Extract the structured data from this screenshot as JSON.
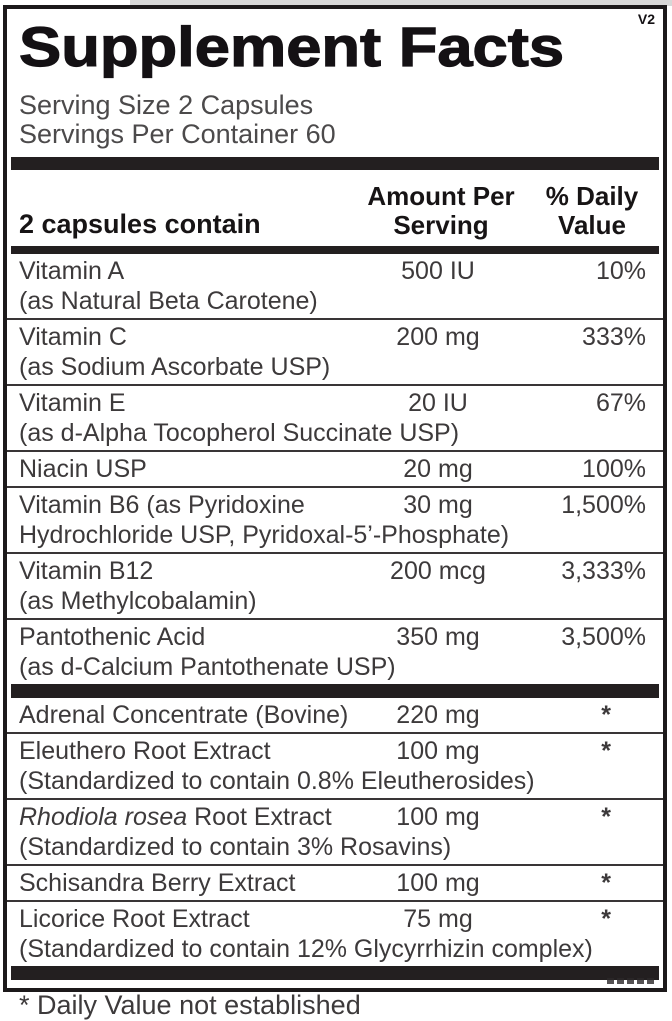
{
  "label": {
    "title": "Supplement Facts",
    "version_mark": "V2",
    "serving_size": "Serving Size 2 Capsules",
    "servings_per_container": "Servings Per Container 60",
    "columns": {
      "ingredient": "2 capsules contain",
      "amount_line1": "Amount Per",
      "amount_line2": "Serving",
      "dv_line1": "% Daily",
      "dv_line2": "Value"
    },
    "footnote": "* Daily Value not established"
  },
  "rows": [
    {
      "name_italic": "",
      "name": "Vitamin A",
      "detail": "(as Natural Beta Carotene)",
      "amount": "500 IU",
      "dv": "10%"
    },
    {
      "name_italic": "",
      "name": "Vitamin C",
      "detail": "(as Sodium Ascorbate USP)",
      "amount": "200 mg",
      "dv": "333%"
    },
    {
      "name_italic": "",
      "name": "Vitamin E",
      "detail": "(as d-Alpha Tocopherol Succinate USP)",
      "amount": "20 IU",
      "dv": "67%"
    },
    {
      "name_italic": "",
      "name": "Niacin USP",
      "detail": "",
      "amount": "20 mg",
      "dv": "100%"
    },
    {
      "name_italic": "",
      "name": "Vitamin B6 (as Pyridoxine",
      "detail": "Hydrochloride USP, Pyridoxal-5’-Phosphate)",
      "amount": "30 mg",
      "dv": "1,500%"
    },
    {
      "name_italic": "",
      "name": "Vitamin B12",
      "detail": "(as Methylcobalamin)",
      "amount": "200 mcg",
      "dv": "3,333%"
    },
    {
      "name_italic": "",
      "name": "Pantothenic Acid",
      "detail": "(as d-Calcium Pantothenate USP)",
      "amount": "350 mg",
      "dv": "3,500%"
    },
    {
      "name_italic": "",
      "name": "Adrenal Concentrate (Bovine)",
      "detail": "",
      "amount": "220 mg",
      "dv": "*"
    },
    {
      "name_italic": "",
      "name": "Eleuthero Root Extract",
      "detail": "(Standardized to contain 0.8% Eleutherosides)",
      "amount": "100 mg",
      "dv": "*"
    },
    {
      "name_italic": "Rhodiola rosea",
      "name": " Root Extract",
      "detail": "(Standardized to contain 3% Rosavins)",
      "amount": "100 mg",
      "dv": "*"
    },
    {
      "name_italic": "",
      "name": "Schisandra Berry Extract",
      "detail": "",
      "amount": "100 mg",
      "dv": "*"
    },
    {
      "name_italic": "",
      "name": "Licorice Root Extract",
      "detail": "(Standardized to contain 12% Glycyrrhizin complex)",
      "amount": "75 mg",
      "dv": "*"
    }
  ],
  "colors": {
    "ink": "#141114",
    "body_text": "#3d3a3b",
    "bar": "#231f20"
  }
}
